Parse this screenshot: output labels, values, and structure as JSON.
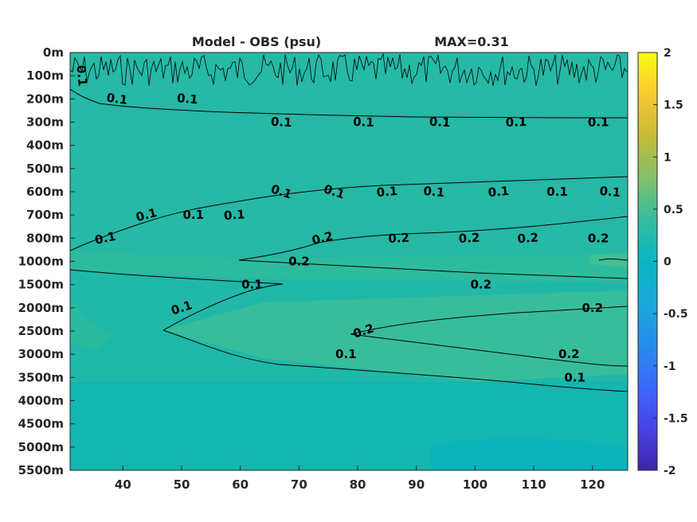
{
  "chart_data": {
    "type": "heatmap",
    "title_left": "Model - OBS (psu)",
    "title_right": "MAX=0.31",
    "xlabel": "",
    "ylabel": "",
    "x_ticks": [
      40,
      50,
      60,
      70,
      80,
      90,
      100,
      110,
      120
    ],
    "xlim": [
      31,
      126
    ],
    "y_ticks": [
      "0m",
      "100m",
      "200m",
      "300m",
      "400m",
      "500m",
      "600m",
      "700m",
      "800m",
      "1000m",
      "1500m",
      "2000m",
      "2500m",
      "3000m",
      "3500m",
      "4000m",
      "4500m",
      "5000m",
      "5500m"
    ],
    "colorbar": {
      "colormap": "parula",
      "range": [
        -2,
        2
      ],
      "ticks": [
        2,
        1.5,
        1,
        0.5,
        0,
        -0.5,
        -1,
        -1.5,
        -2
      ]
    },
    "contour_levels": [
      0.1,
      0.2
    ],
    "contour_labels": [
      {
        "text": "0.1",
        "x": 33,
        "y": "100m",
        "rot": 85
      },
      {
        "text": "0.1",
        "x": 39,
        "y": "200m",
        "rot": 8
      },
      {
        "text": "0.1",
        "x": 51,
        "y": "200m",
        "rot": 5
      },
      {
        "text": "0.1",
        "x": 67,
        "y": "300m",
        "rot": 3
      },
      {
        "text": "0.1",
        "x": 81,
        "y": "300m",
        "rot": 2
      },
      {
        "text": "0.1",
        "x": 94,
        "y": "300m",
        "rot": 3
      },
      {
        "text": "0.1",
        "x": 107,
        "y": "300m",
        "rot": -2
      },
      {
        "text": "0.1",
        "x": 121,
        "y": "300m",
        "rot": -1
      },
      {
        "text": "0.1",
        "x": 37,
        "y": "800m",
        "rot": -12
      },
      {
        "text": "0.1",
        "x": 44,
        "y": "700m",
        "rot": -15
      },
      {
        "text": "0.1",
        "x": 52,
        "y": "700m",
        "rot": 0
      },
      {
        "text": "0.1",
        "x": 59,
        "y": "700m",
        "rot": -4
      },
      {
        "text": "0.1",
        "x": 67,
        "y": "600m",
        "rot": 18
      },
      {
        "text": "0.1",
        "x": 76,
        "y": "600m",
        "rot": 18
      },
      {
        "text": "0.1",
        "x": 85,
        "y": "600m",
        "rot": -5
      },
      {
        "text": "0.1",
        "x": 93,
        "y": "600m",
        "rot": 5
      },
      {
        "text": "0.1",
        "x": 104,
        "y": "600m",
        "rot": -5
      },
      {
        "text": "0.1",
        "x": 114,
        "y": "600m",
        "rot": 0
      },
      {
        "text": "0.1",
        "x": 123,
        "y": "600m",
        "rot": 5
      },
      {
        "text": "0.2",
        "x": 74,
        "y": "800m",
        "rot": -14
      },
      {
        "text": "0.2",
        "x": 70,
        "y": "1000m",
        "rot": 0
      },
      {
        "text": "0.2",
        "x": 87,
        "y": "800m",
        "rot": -3
      },
      {
        "text": "0.2",
        "x": 99,
        "y": "800m",
        "rot": -3
      },
      {
        "text": "0.2",
        "x": 109,
        "y": "800m",
        "rot": -4
      },
      {
        "text": "0.2",
        "x": 121,
        "y": "800m",
        "rot": 0
      },
      {
        "text": "0.2",
        "x": 101,
        "y": "1500m",
        "rot": 0
      },
      {
        "text": "0.1",
        "x": 62,
        "y": "1500m",
        "rot": 0
      },
      {
        "text": "0.1",
        "x": 50,
        "y": "2000m",
        "rot": -18
      },
      {
        "text": "0.2",
        "x": 120,
        "y": "2000m",
        "rot": 0
      },
      {
        "text": "0.2",
        "x": 81,
        "y": "2500m",
        "rot": -18
      },
      {
        "text": "0.2",
        "x": 116,
        "y": "3000m",
        "rot": 0
      },
      {
        "text": "0.1",
        "x": 78,
        "y": "3000m",
        "rot": 0
      },
      {
        "text": "0.1",
        "x": 117,
        "y": "3500m",
        "rot": 0
      }
    ]
  }
}
